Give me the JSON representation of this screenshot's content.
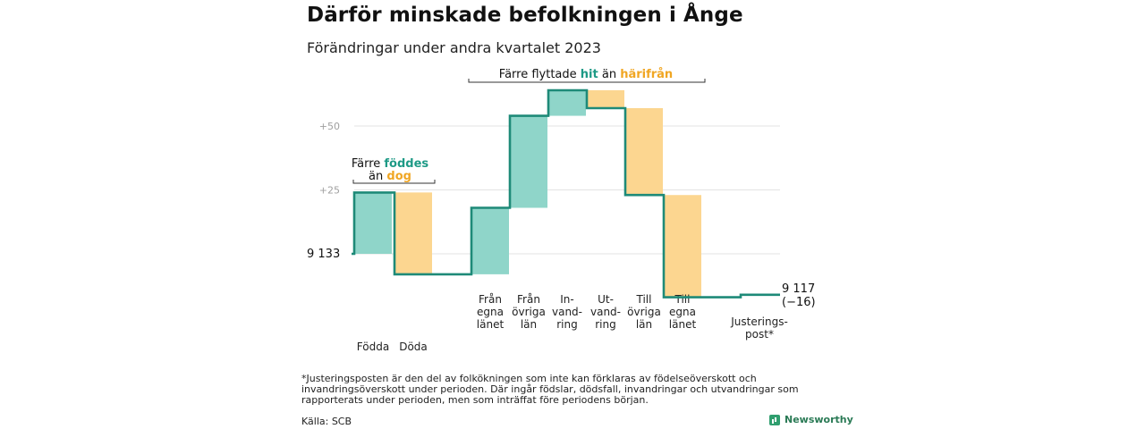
{
  "title": "Därför minskade befolkningen i Ånge",
  "subtitle": "Förändringar under andra kvartalet 2023",
  "chart_data": {
    "type": "waterfall",
    "start_value": 9133,
    "start_label": "9 133",
    "end_value": 9117,
    "end_label": "9 117",
    "change_label": "(−16)",
    "y_ticks": [
      {
        "value": 25,
        "label": "+25"
      },
      {
        "value": 50,
        "label": "+50"
      }
    ],
    "grid": true,
    "colors": {
      "increase": "#8fd5c9",
      "decrease": "#fcd690",
      "line": "#1e8a78",
      "hit": "#1e9a86",
      "harifran": "#f0a623",
      "grid": "#e3e3e3",
      "axis_text": "#a0a0a0"
    },
    "steps": [
      {
        "label": [
          "Födda"
        ],
        "value": 24,
        "kind": "increase"
      },
      {
        "label": [
          "Döda"
        ],
        "value": -32,
        "kind": "decrease"
      },
      {
        "label": [
          "Från",
          "egna",
          "länet"
        ],
        "value": 26,
        "kind": "increase"
      },
      {
        "label": [
          "Från",
          "övriga",
          "län"
        ],
        "value": 36,
        "kind": "increase"
      },
      {
        "label": [
          "In-",
          "vand-",
          "ring"
        ],
        "value": 10,
        "kind": "increase"
      },
      {
        "label": [
          "Ut-",
          "vand-",
          "ring"
        ],
        "value": -7,
        "kind": "decrease"
      },
      {
        "label": [
          "Till",
          "övriga",
          "län"
        ],
        "value": -34,
        "kind": "decrease"
      },
      {
        "label": [
          "Till",
          "egna",
          "länet"
        ],
        "value": -40,
        "kind": "decrease"
      },
      {
        "label": [
          "Justerings-",
          "post*"
        ],
        "value": 1,
        "kind": "adjustment"
      }
    ],
    "annotations": [
      {
        "id": "birth",
        "lines": [
          [
            {
              "text": "Färre ",
              "style": "plain"
            },
            {
              "text": "föddes",
              "style": "hit"
            }
          ],
          [
            {
              "text": "än ",
              "style": "plain"
            },
            {
              "text": "dog",
              "style": "harifran"
            }
          ]
        ]
      },
      {
        "id": "migration",
        "lines": [
          [
            {
              "text": "Färre flyttade ",
              "style": "plain"
            },
            {
              "text": "hit",
              "style": "hit"
            },
            {
              "text": " än ",
              "style": "plain"
            },
            {
              "text": "härifrån",
              "style": "harifran"
            }
          ]
        ]
      }
    ]
  },
  "footnote": "*Justeringsposten är den del av folkökningen som inte kan förklaras av födelseöverskott och invandringsöverskott under perioden. Där ingår födslar, dödsfall, invandringar och utvandringar som rapporterats under perioden, men som inträffat före periodens början.",
  "source": "Källa: SCB",
  "brand": "Newsworthy"
}
